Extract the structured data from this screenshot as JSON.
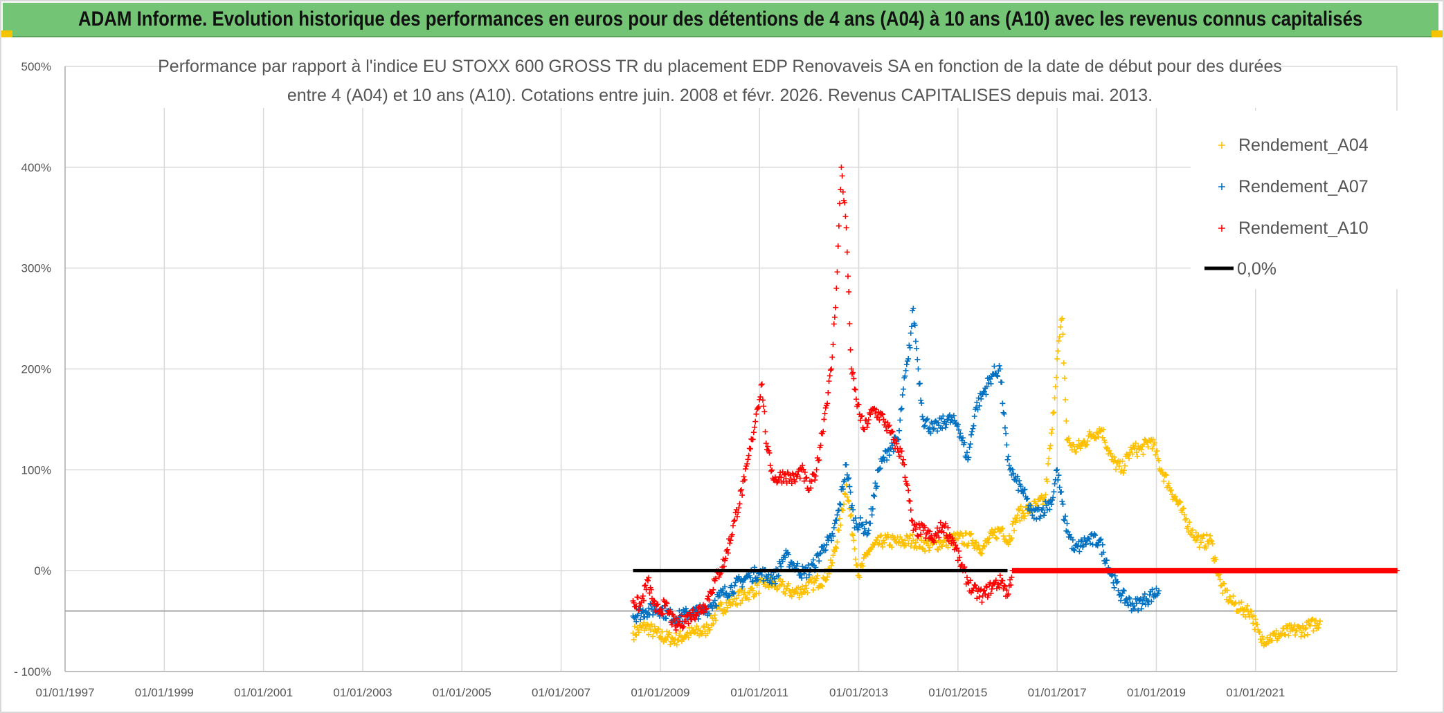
{
  "header": {
    "banner": "ADAM Informe. Evolution historique des performances en euros pour des détentions de 4 ans (A04) à 10 ans (A10) avec les revenus connus capitalisés"
  },
  "chart_data": {
    "type": "scatter",
    "title_lines": [
      "Performance par rapport à l'indice EU STOXX 600 GROSS TR  du placement EDP Renovaveis SA en fonction de la date de début pour des durées",
      "entre 4 (A04) et 10 ans (A10). Cotations entre juin. 2008 et févr. 2026. Revenus CAPITALISES depuis mai. 2013."
    ],
    "x_ticks": [
      "01/01/1997",
      "01/01/1999",
      "01/01/2001",
      "01/01/2003",
      "01/01/2005",
      "01/01/2007",
      "01/01/2009",
      "01/01/2011",
      "01/01/2013",
      "01/01/2015",
      "01/01/2017",
      "01/01/2019",
      "01/01/2021"
    ],
    "x_tick_years": [
      1997,
      1999,
      2001,
      2003,
      2005,
      2007,
      2009,
      2011,
      2013,
      2015,
      2017,
      2019,
      2021
    ],
    "xlim": [
      1997,
      2023.85
    ],
    "y_ticks": [
      "- 100%",
      "0%",
      "100%",
      "200%",
      "300%",
      "400%",
      "500%"
    ],
    "y_tick_values": [
      -100,
      0,
      100,
      200,
      300,
      400,
      500
    ],
    "ylim": [
      -100,
      500
    ],
    "reference_line": -40,
    "legend_position": "top-right",
    "series": [
      {
        "name": "Rendement_A04",
        "color": "#ffc000",
        "marker": "+",
        "x": [
          2008.45,
          2008.7,
          2009.0,
          2009.3,
          2009.6,
          2009.9,
          2010.2,
          2010.5,
          2010.8,
          2011.1,
          2011.4,
          2011.7,
          2011.9,
          2012.1,
          2012.3,
          2012.45,
          2012.6,
          2012.75,
          2012.9,
          2013.0,
          2013.2,
          2013.5,
          2013.8,
          2014.1,
          2014.4,
          2014.7,
          2015.0,
          2015.3,
          2015.5,
          2015.7,
          2015.9,
          2016.0,
          2016.2,
          2016.4,
          2016.6,
          2016.75,
          2016.9,
          2017.0,
          2017.1,
          2017.2,
          2017.35,
          2017.5,
          2017.7,
          2017.9,
          2018.1,
          2018.3,
          2018.5,
          2018.7,
          2018.9,
          2019.1,
          2019.3,
          2019.5,
          2019.7,
          2019.9,
          2020.1,
          2020.3,
          2020.5,
          2020.7,
          2020.9,
          2021.1,
          2021.4,
          2021.7,
          2022.0,
          2022.3
        ],
        "y": [
          -62,
          -55,
          -65,
          -68,
          -62,
          -60,
          -38,
          -28,
          -22,
          -12,
          -15,
          -22,
          -18,
          -12,
          -8,
          5,
          40,
          85,
          30,
          -5,
          20,
          30,
          28,
          30,
          25,
          28,
          32,
          30,
          22,
          35,
          42,
          28,
          55,
          60,
          65,
          70,
          140,
          210,
          250,
          130,
          120,
          125,
          135,
          140,
          110,
          100,
          120,
          120,
          130,
          100,
          80,
          60,
          40,
          28,
          30,
          -15,
          -30,
          -38,
          -40,
          -68,
          -65,
          -60,
          -58,
          -50
        ]
      },
      {
        "name": "Rendement_A07",
        "color": "#0070c0",
        "marker": "+",
        "x": [
          2008.45,
          2008.7,
          2009.0,
          2009.3,
          2009.6,
          2009.9,
          2010.2,
          2010.5,
          2010.8,
          2011.0,
          2011.3,
          2011.5,
          2011.7,
          2011.9,
          2012.1,
          2012.3,
          2012.45,
          2012.6,
          2012.75,
          2012.9,
          2013.05,
          2013.2,
          2013.4,
          2013.6,
          2013.8,
          2013.9,
          2014.0,
          2014.1,
          2014.2,
          2014.3,
          2014.5,
          2014.8,
          2015.0,
          2015.2,
          2015.35,
          2015.5,
          2015.7,
          2015.85,
          2016.0,
          2016.15,
          2016.3,
          2016.5,
          2016.7,
          2016.9,
          2017.0,
          2017.15,
          2017.35,
          2017.6,
          2017.85,
          2018.1,
          2018.3,
          2018.55,
          2018.8,
          2019.05
        ],
        "y": [
          -45,
          -40,
          -38,
          -48,
          -42,
          -40,
          -25,
          -15,
          -5,
          -2,
          -8,
          15,
          5,
          -3,
          5,
          25,
          30,
          60,
          105,
          50,
          45,
          40,
          100,
          120,
          130,
          180,
          210,
          260,
          200,
          150,
          140,
          150,
          145,
          110,
          160,
          175,
          195,
          200,
          110,
          90,
          80,
          55,
          60,
          70,
          100,
          50,
          20,
          30,
          30,
          -5,
          -25,
          -35,
          -28,
          -20
        ]
      },
      {
        "name": "Rendement_A10",
        "color": "#ff0000",
        "marker": "+",
        "x": [
          2008.45,
          2008.6,
          2008.75,
          2008.9,
          2009.1,
          2009.3,
          2009.6,
          2009.9,
          2010.1,
          2010.3,
          2010.5,
          2010.7,
          2010.85,
          2010.95,
          2011.05,
          2011.15,
          2011.3,
          2011.5,
          2011.7,
          2011.85,
          2012.0,
          2012.15,
          2012.3,
          2012.45,
          2012.55,
          2012.65,
          2012.75,
          2012.85,
          2012.95,
          2013.1,
          2013.3,
          2013.5,
          2013.7,
          2013.9,
          2014.1,
          2014.3,
          2014.5,
          2014.7,
          2014.9,
          2015.1,
          2015.3,
          2015.5,
          2015.7,
          2015.9,
          2016.0,
          2016.1,
          2016.3,
          2016.6,
          2017.0,
          2017.5,
          2018.0,
          2018.5,
          2019.0,
          2019.5,
          2020.0,
          2020.5,
          2021.0,
          2021.5,
          2022.0,
          2022.5,
          2023.0,
          2023.5,
          2023.85
        ],
        "y": [
          -30,
          -35,
          -10,
          -40,
          -35,
          -55,
          -45,
          -35,
          -10,
          10,
          50,
          90,
          130,
          160,
          185,
          120,
          90,
          95,
          90,
          100,
          80,
          100,
          150,
          200,
          280,
          400,
          340,
          200,
          170,
          140,
          160,
          150,
          130,
          110,
          40,
          40,
          30,
          45,
          30,
          0,
          -20,
          -25,
          -15,
          -10,
          -25,
          0,
          0,
          0,
          0,
          0,
          0,
          0,
          0,
          0,
          0,
          0,
          0,
          0,
          0,
          0,
          0,
          0,
          0
        ]
      },
      {
        "name": "0,0%",
        "color": "#000000",
        "marker": "line",
        "x": [
          2008.45,
          2016.0
        ],
        "y": [
          0,
          0
        ]
      }
    ]
  }
}
